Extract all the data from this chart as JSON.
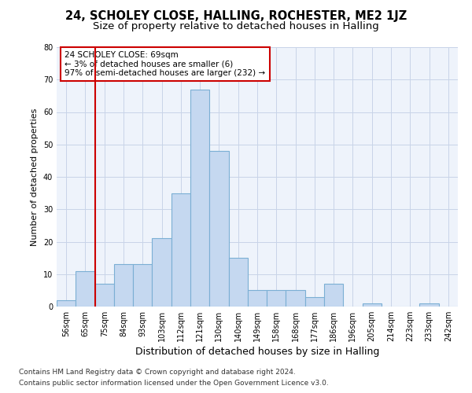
{
  "title1": "24, SCHOLEY CLOSE, HALLING, ROCHESTER, ME2 1JZ",
  "title2": "Size of property relative to detached houses in Halling",
  "xlabel": "Distribution of detached houses by size in Halling",
  "ylabel": "Number of detached properties",
  "categories": [
    "56sqm",
    "65sqm",
    "75sqm",
    "84sqm",
    "93sqm",
    "103sqm",
    "112sqm",
    "121sqm",
    "130sqm",
    "140sqm",
    "149sqm",
    "158sqm",
    "168sqm",
    "177sqm",
    "186sqm",
    "196sqm",
    "205sqm",
    "214sqm",
    "223sqm",
    "233sqm",
    "242sqm"
  ],
  "values": [
    2,
    11,
    7,
    13,
    13,
    21,
    35,
    67,
    48,
    15,
    5,
    5,
    5,
    3,
    7,
    0,
    1,
    0,
    0,
    1,
    0
  ],
  "bar_color": "#c5d8f0",
  "bar_edge_color": "#7bafd4",
  "vline_x": 1.5,
  "vline_color": "#cc0000",
  "annotation_text": "24 SCHOLEY CLOSE: 69sqm\n← 3% of detached houses are smaller (6)\n97% of semi-detached houses are larger (232) →",
  "annotation_box_color": "#ffffff",
  "annotation_box_edge_color": "#cc0000",
  "ylim": [
    0,
    80
  ],
  "yticks": [
    0,
    10,
    20,
    30,
    40,
    50,
    60,
    70,
    80
  ],
  "footer1": "Contains HM Land Registry data © Crown copyright and database right 2024.",
  "footer2": "Contains public sector information licensed under the Open Government Licence v3.0.",
  "bg_color": "#ffffff",
  "plot_bg_color": "#eef3fb",
  "grid_color": "#c8d4e8",
  "title1_fontsize": 10.5,
  "title2_fontsize": 9.5,
  "ylabel_fontsize": 8,
  "xlabel_fontsize": 9,
  "tick_fontsize": 7,
  "footer_fontsize": 6.5
}
